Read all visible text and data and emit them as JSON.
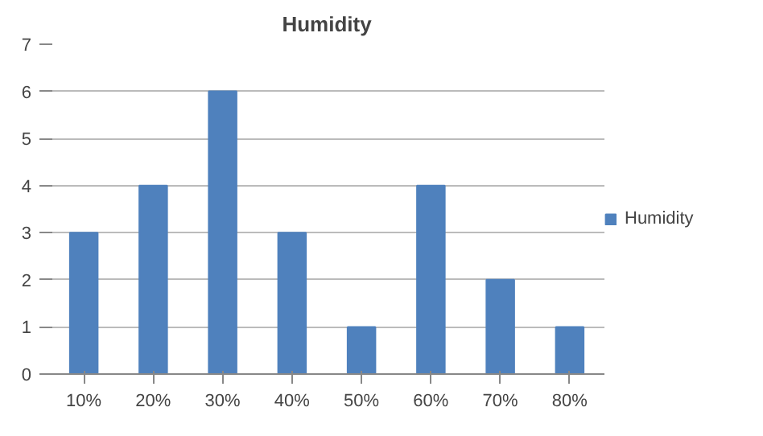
{
  "chart_data": {
    "type": "bar",
    "title": "Humidity",
    "categories": [
      "10%",
      "20%",
      "30%",
      "40%",
      "50%",
      "60%",
      "70%",
      "80%"
    ],
    "series": [
      {
        "name": "Humidity",
        "color": "#4f81bd",
        "values": [
          3,
          4,
          6,
          3,
          1,
          4,
          2,
          1
        ]
      }
    ],
    "ylim": [
      0,
      7
    ],
    "yticks": [
      0,
      1,
      2,
      3,
      4,
      5,
      6,
      7
    ],
    "grid": "y",
    "legend": "right"
  }
}
